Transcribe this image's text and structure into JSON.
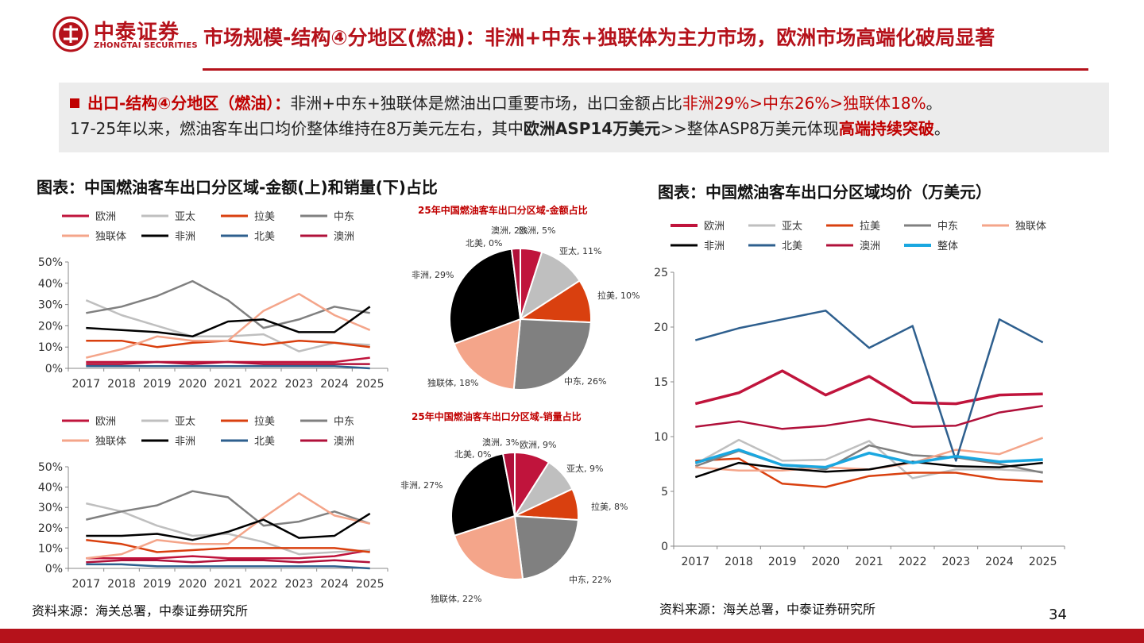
{
  "header": {
    "logo_name": "中泰证券",
    "logo_sub": "ZHONGTAI SECURITIES",
    "title": "市场规模-结构④分地区(燃油)：非洲+中东+独联体为主力市场，欧洲市场高端化破局显著"
  },
  "summary": {
    "line1_prefix": "出口-结构④分地区（燃油）：",
    "line1_mid": "非洲+中东+独联体是燃油出口重要市场，出口金额占比",
    "line1_highlight": "非洲29%>中东26%>独联体18%",
    "line1_end": "。",
    "line2_a": "17-25年以来，燃油客车出口均价整体维持在8万美元左右，其中",
    "line2_b": "欧洲ASP14万美元",
    "line2_c": ">>整体ASP8万美元体现",
    "line2_d": "高端持续突破",
    "line2_e": "。"
  },
  "left_title": "图表：中国燃油客车出口分区域-金额(上)和销量(下)占比",
  "right_title": "图表：中国燃油客车出口分区域均价（万美元）",
  "source_left": "资料来源：海关总署，中泰证券研究所",
  "source_right": "资料来源：海关总署，中泰证券研究所",
  "page_number": "34",
  "colors": {
    "brand_red": "#b5121b",
    "欧洲": "#c0143c",
    "亚太": "#bfbfbf",
    "拉美": "#d9400f",
    "中东": "#808080",
    "独联体": "#f4a58a",
    "非洲": "#000000",
    "北美": "#2e5f8e",
    "澳洲": "#b0103a",
    "整体": "#1aa7e0"
  },
  "chart_data": [
    {
      "id": "amount_share_line",
      "type": "line",
      "x": [
        "2017",
        "2018",
        "2019",
        "2020",
        "2021",
        "2022",
        "2023",
        "2024",
        "2025"
      ],
      "yticks": [
        "0%",
        "10%",
        "20%",
        "30%",
        "40%",
        "50%"
      ],
      "ylim": [
        0,
        0.5
      ],
      "legend": "top",
      "series": [
        {
          "name": "欧洲",
          "values": [
            0.03,
            0.03,
            0.03,
            0.03,
            0.03,
            0.03,
            0.03,
            0.03,
            0.05
          ]
        },
        {
          "name": "亚太",
          "values": [
            0.32,
            0.25,
            0.2,
            0.15,
            0.15,
            0.16,
            0.08,
            0.12,
            0.11
          ]
        },
        {
          "name": "拉美",
          "values": [
            0.13,
            0.13,
            0.1,
            0.12,
            0.13,
            0.11,
            0.13,
            0.12,
            0.1
          ]
        },
        {
          "name": "中东",
          "values": [
            0.26,
            0.29,
            0.34,
            0.41,
            0.32,
            0.19,
            0.23,
            0.29,
            0.26
          ]
        },
        {
          "name": "独联体",
          "values": [
            0.05,
            0.09,
            0.15,
            0.13,
            0.13,
            0.27,
            0.35,
            0.25,
            0.18
          ]
        },
        {
          "name": "非洲",
          "values": [
            0.19,
            0.18,
            0.17,
            0.15,
            0.22,
            0.23,
            0.17,
            0.17,
            0.29
          ]
        },
        {
          "name": "北美",
          "values": [
            0.01,
            0.01,
            0.01,
            0.01,
            0.01,
            0.01,
            0.01,
            0.01,
            0.0
          ]
        },
        {
          "name": "澳洲",
          "values": [
            0.02,
            0.02,
            0.03,
            0.02,
            0.03,
            0.02,
            0.02,
            0.02,
            0.02
          ]
        }
      ]
    },
    {
      "id": "volume_share_line",
      "type": "line",
      "x": [
        "2017",
        "2018",
        "2019",
        "2020",
        "2021",
        "2022",
        "2023",
        "2024",
        "2025"
      ],
      "yticks": [
        "0%",
        "10%",
        "20%",
        "30%",
        "40%",
        "50%"
      ],
      "ylim": [
        0,
        0.5
      ],
      "legend": "top",
      "series": [
        {
          "name": "欧洲",
          "values": [
            0.05,
            0.05,
            0.05,
            0.06,
            0.05,
            0.05,
            0.05,
            0.06,
            0.09
          ]
        },
        {
          "name": "亚太",
          "values": [
            0.32,
            0.28,
            0.21,
            0.16,
            0.17,
            0.13,
            0.07,
            0.08,
            0.09
          ]
        },
        {
          "name": "拉美",
          "values": [
            0.14,
            0.12,
            0.08,
            0.09,
            0.1,
            0.1,
            0.1,
            0.1,
            0.08
          ]
        },
        {
          "name": "中东",
          "values": [
            0.24,
            0.28,
            0.31,
            0.38,
            0.35,
            0.21,
            0.23,
            0.28,
            0.22
          ]
        },
        {
          "name": "独联体",
          "values": [
            0.05,
            0.07,
            0.14,
            0.12,
            0.12,
            0.25,
            0.37,
            0.26,
            0.22
          ]
        },
        {
          "name": "非洲",
          "values": [
            0.16,
            0.16,
            0.17,
            0.14,
            0.18,
            0.24,
            0.15,
            0.16,
            0.27
          ]
        },
        {
          "name": "北美",
          "values": [
            0.02,
            0.02,
            0.01,
            0.01,
            0.01,
            0.01,
            0.01,
            0.01,
            0.0
          ]
        },
        {
          "name": "澳洲",
          "values": [
            0.03,
            0.04,
            0.04,
            0.03,
            0.04,
            0.04,
            0.03,
            0.04,
            0.03
          ]
        }
      ]
    },
    {
      "id": "amount_share_pie",
      "type": "pie",
      "title": "25年中国燃油客车出口分区域-金额占比",
      "slices": [
        {
          "label": "欧洲",
          "value": 5,
          "text": "欧洲, 5%"
        },
        {
          "label": "亚太",
          "value": 11,
          "text": "亚太, 11%"
        },
        {
          "label": "拉美",
          "value": 10,
          "text": "拉美, 10%"
        },
        {
          "label": "中东",
          "value": 26,
          "text": "中东, 26%"
        },
        {
          "label": "独联体",
          "value": 18,
          "text": "独联体, 18%"
        },
        {
          "label": "非洲",
          "value": 29,
          "text": "非洲, 29%"
        },
        {
          "label": "北美",
          "value": 0,
          "text": "北美, 0%"
        },
        {
          "label": "澳洲",
          "value": 2,
          "text": "澳洲, 2%"
        }
      ]
    },
    {
      "id": "volume_share_pie",
      "type": "pie",
      "title": "25年中国燃油客车出口分区域-销量占比",
      "slices": [
        {
          "label": "欧洲",
          "value": 9,
          "text": "欧洲, 9%"
        },
        {
          "label": "亚太",
          "value": 9,
          "text": "亚太, 9%"
        },
        {
          "label": "拉美",
          "value": 8,
          "text": "拉美, 8%"
        },
        {
          "label": "中东",
          "value": 22,
          "text": "中东, 22%"
        },
        {
          "label": "独联体",
          "value": 22,
          "text": "独联体, 22%"
        },
        {
          "label": "非洲",
          "value": 27,
          "text": "非洲, 27%"
        },
        {
          "label": "北美",
          "value": 0,
          "text": "北美, 0%"
        },
        {
          "label": "澳洲",
          "value": 3,
          "text": "澳洲, 3%"
        }
      ]
    },
    {
      "id": "asp_line",
      "type": "line",
      "x": [
        "2017",
        "2018",
        "2019",
        "2020",
        "2021",
        "2022",
        "2023",
        "2024",
        "2025"
      ],
      "yticks": [
        "0",
        "5",
        "10",
        "15",
        "20",
        "25"
      ],
      "ylim": [
        0,
        25
      ],
      "legend": "top",
      "series": [
        {
          "name": "欧洲",
          "values": [
            13.0,
            14.0,
            16.0,
            13.8,
            15.5,
            13.1,
            13.0,
            13.8,
            13.9
          ]
        },
        {
          "name": "亚太",
          "values": [
            7.5,
            9.7,
            7.8,
            7.9,
            9.6,
            6.2,
            7.0,
            7.0,
            6.8
          ]
        },
        {
          "name": "拉美",
          "values": [
            7.8,
            8.0,
            5.7,
            5.4,
            6.4,
            6.7,
            6.7,
            6.1,
            5.9
          ]
        },
        {
          "name": "中东",
          "values": [
            7.3,
            8.7,
            7.4,
            7.0,
            9.2,
            8.3,
            8.1,
            7.5,
            6.7
          ]
        },
        {
          "name": "独联体",
          "values": [
            7.2,
            6.9,
            6.9,
            7.2,
            7.0,
            7.6,
            8.8,
            8.4,
            9.9
          ]
        },
        {
          "name": "非洲",
          "values": [
            6.3,
            7.6,
            7.1,
            6.8,
            7.0,
            7.7,
            7.3,
            7.2,
            7.6
          ]
        },
        {
          "name": "北美",
          "values": [
            18.8,
            19.9,
            20.7,
            21.5,
            18.1,
            20.1,
            7.8,
            20.7,
            18.6
          ]
        },
        {
          "name": "澳洲",
          "values": [
            10.9,
            11.4,
            10.7,
            11.0,
            11.6,
            10.9,
            11.0,
            12.2,
            12.8
          ]
        },
        {
          "name": "整体",
          "values": [
            7.6,
            8.8,
            7.4,
            7.2,
            8.5,
            7.6,
            8.2,
            7.7,
            7.9
          ]
        }
      ]
    }
  ]
}
